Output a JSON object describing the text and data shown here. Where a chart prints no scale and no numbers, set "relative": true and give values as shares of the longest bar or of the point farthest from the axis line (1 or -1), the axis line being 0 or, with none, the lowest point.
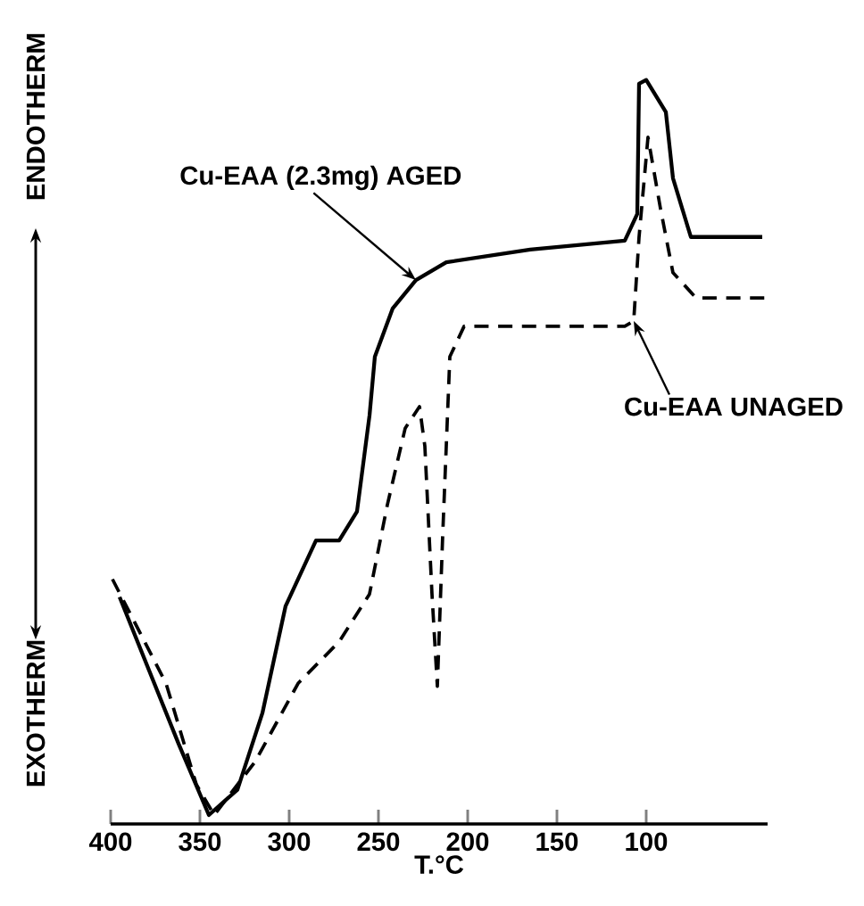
{
  "chart_data": {
    "type": "line",
    "relative": true,
    "xlabel": "T.°C",
    "xlim": [
      400,
      32
    ],
    "xticks": [
      400,
      350,
      300,
      250,
      200,
      150,
      100
    ],
    "series": [
      {
        "color": "#000000",
        "line_style": "solid",
        "x": [
          395,
          362,
          345,
          329,
          315,
          302,
          285,
          272,
          262,
          255,
          252,
          242,
          229,
          212,
          165,
          112,
          105,
          104,
          100,
          89,
          85,
          75,
          35
        ],
        "values": [
          0.305,
          0.108,
          0.012,
          0.046,
          0.149,
          0.293,
          0.381,
          0.381,
          0.42,
          0.549,
          0.628,
          0.693,
          0.731,
          0.755,
          0.772,
          0.784,
          0.82,
          0.995,
          1.0,
          0.957,
          0.868,
          0.789,
          0.789
        ]
      },
      {
        "color": "#000000",
        "line_style": "dashed",
        "x": [
          399,
          369,
          352,
          342,
          319,
          295,
          272,
          255,
          245,
          235,
          227,
          224,
          220,
          217,
          214,
          210,
          202,
          112,
          107,
          104,
          99,
          92,
          85,
          72,
          33
        ],
        "values": [
          0.329,
          0.189,
          0.053,
          0.012,
          0.084,
          0.189,
          0.245,
          0.309,
          0.429,
          0.532,
          0.561,
          0.508,
          0.309,
          0.185,
          0.388,
          0.628,
          0.669,
          0.669,
          0.676,
          0.789,
          0.923,
          0.827,
          0.741,
          0.707,
          0.707
        ]
      }
    ],
    "annotations": [
      {
        "text": "Cu-EAA (2.3mg) AGED",
        "x": 229,
        "y": 0.731
      },
      {
        "text": "Cu-EAA UNAGED",
        "x": 107,
        "y": 0.676
      },
      "ENDOTHERM",
      "EXOTHERM"
    ]
  }
}
